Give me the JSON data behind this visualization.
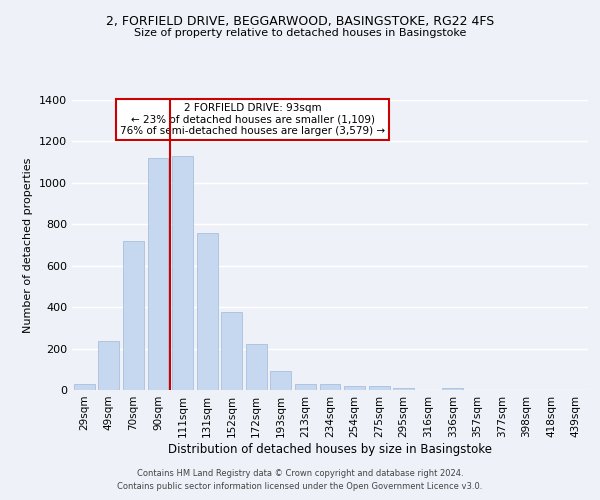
{
  "title_line1": "2, FORFIELD DRIVE, BEGGARWOOD, BASINGSTOKE, RG22 4FS",
  "title_line2": "Size of property relative to detached houses in Basingstoke",
  "xlabel": "Distribution of detached houses by size in Basingstoke",
  "ylabel": "Number of detached properties",
  "categories": [
    "29sqm",
    "49sqm",
    "70sqm",
    "90sqm",
    "111sqm",
    "131sqm",
    "152sqm",
    "172sqm",
    "193sqm",
    "213sqm",
    "234sqm",
    "254sqm",
    "275sqm",
    "295sqm",
    "316sqm",
    "336sqm",
    "357sqm",
    "377sqm",
    "398sqm",
    "418sqm",
    "439sqm"
  ],
  "values": [
    30,
    235,
    720,
    1120,
    1130,
    760,
    375,
    220,
    90,
    28,
    28,
    18,
    18,
    10,
    0,
    10,
    0,
    0,
    0,
    0,
    0
  ],
  "bar_color": "#c5d8f0",
  "bar_edge_color": "#a0b8d8",
  "vline_color": "#cc0000",
  "vline_x_index": 3.5,
  "annotation_text": "2 FORFIELD DRIVE: 93sqm\n← 23% of detached houses are smaller (1,109)\n76% of semi-detached houses are larger (3,579) →",
  "annotation_box_color": "#ffffff",
  "annotation_box_edge": "#cc0000",
  "ylim": [
    0,
    1400
  ],
  "yticks": [
    0,
    200,
    400,
    600,
    800,
    1000,
    1200,
    1400
  ],
  "footer_line1": "Contains HM Land Registry data © Crown copyright and database right 2024.",
  "footer_line2": "Contains public sector information licensed under the Open Government Licence v3.0.",
  "bg_color": "#eef2f8",
  "plot_bg_color": "#eef2f8",
  "grid_color": "#ffffff"
}
